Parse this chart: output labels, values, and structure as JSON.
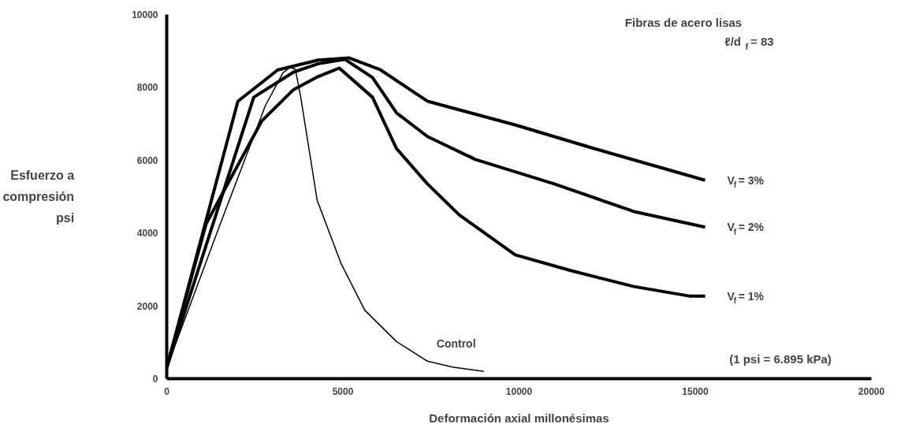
{
  "chart_data": {
    "type": "line",
    "xlabel": "Deformación axial millonésimas",
    "ylabel": "Esfuerzo a\ncompresión\npsi",
    "xlim": [
      0,
      20000
    ],
    "ylim": [
      0,
      10000
    ],
    "xticks": [
      0,
      5000,
      10000,
      15000,
      20000
    ],
    "yticks": [
      0,
      2000,
      4000,
      6000,
      8000,
      10000
    ],
    "grid": false,
    "marker": "none",
    "line_style": "solid",
    "annotations": [
      "Fibras de acero lisas",
      "ℓ/d$_{f}$ = 83",
      "(1 psi = 6.895 kPa)"
    ],
    "series": [
      {
        "name": "V$_{f}$ = 3%",
        "color": "#000000",
        "x": [
          0,
          2020,
          3150,
          4300,
          5170,
          6070,
          7400,
          9890,
          12130,
          15280
        ],
        "values": [
          300,
          7620,
          8480,
          8750,
          8810,
          8480,
          7620,
          6970,
          6320,
          5450
        ]
      },
      {
        "name": "V$_{f}$ = 2%",
        "color": "#000000",
        "x": [
          0,
          2470,
          3600,
          4300,
          5060,
          5840,
          6520,
          7400,
          8760,
          11000,
          13260,
          15280
        ],
        "values": [
          300,
          7730,
          8420,
          8650,
          8770,
          8270,
          7300,
          6650,
          6020,
          5350,
          4590,
          4160
        ]
      },
      {
        "name": "V$_{f}$ = 1%",
        "color": "#000000",
        "x": [
          0,
          1120,
          2700,
          3600,
          4300,
          4900,
          5840,
          6520,
          7400,
          8300,
          9890,
          11460,
          13260,
          14830,
          15280
        ],
        "values": [
          300,
          4260,
          7080,
          7940,
          8300,
          8530,
          7730,
          6320,
          5350,
          4500,
          3400,
          2970,
          2530,
          2270,
          2270
        ]
      },
      {
        "name": "Control",
        "color": "#000000",
        "x": [
          0,
          1500,
          2800,
          3300,
          3500,
          3650,
          3800,
          4270,
          4940,
          5620,
          6520,
          7400,
          8100,
          9000
        ],
        "values": [
          300,
          4200,
          7500,
          8400,
          8550,
          8500,
          7750,
          4900,
          3180,
          1880,
          1020,
          480,
          320,
          200
        ]
      }
    ]
  }
}
